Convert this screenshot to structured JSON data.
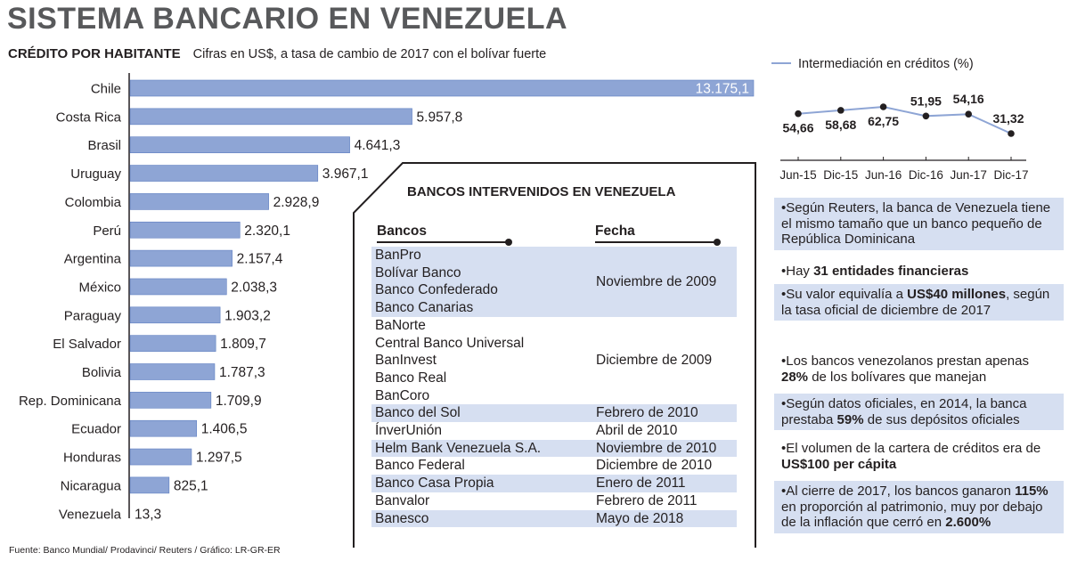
{
  "header": {
    "title": "SISTEMA BANCARIO EN VENEZUELA",
    "subtitle": "CRÉDITO POR HABITANTE",
    "note": "Cifras en US$, a tasa de cambio de 2017 con el bolívar fuerte"
  },
  "colors": {
    "bar": "#8ea5d5",
    "bar_stroke": "#5f7fc1",
    "shade": "#d6dff1",
    "line": "#8ea5d5",
    "text": "#231f20"
  },
  "chart_data": [
    {
      "type": "bar",
      "orientation": "horizontal",
      "title": "CRÉDITO POR HABITANTE",
      "categories": [
        "Chile",
        "Costa Rica",
        "Brasil",
        "Uruguay",
        "Colombia",
        "Perú",
        "Argentina",
        "México",
        "Paraguay",
        "El Salvador",
        "Bolivia",
        "Rep. Dominicana",
        "Ecuador",
        "Honduras",
        "Nicaragua",
        "Venezuela"
      ],
      "values": [
        13175.1,
        5957.8,
        4641.3,
        3967.1,
        2928.9,
        2320.1,
        2157.4,
        2038.3,
        1903.2,
        1809.7,
        1787.3,
        1709.9,
        1406.5,
        1297.5,
        825.1,
        13.3
      ],
      "value_labels": [
        "13.175,1",
        "5.957,8",
        "4.641,3",
        "3.967,1",
        "2.928,9",
        "2.320,1",
        "2.157,4",
        "2.038,3",
        "1.903,2",
        "1.809,7",
        "1.787,3",
        "1.709,9",
        "1.406,5",
        "1.297,5",
        "825,1",
        "13,3"
      ],
      "grid": false
    },
    {
      "type": "line",
      "legend": "Intermediación en créditos  (%)",
      "x": [
        "Jun-15",
        "Dic-15",
        "Jun-16",
        "Dic-16",
        "Jun-17",
        "Dic-17"
      ],
      "series": [
        {
          "name": "Intermediación en créditos  (%)",
          "values": [
            54.66,
            58.68,
            62.75,
            51.95,
            54.16,
            31.32
          ],
          "labels": [
            "54,66",
            "58,68",
            "62,75",
            "51,95",
            "54,16",
            "31,32"
          ]
        }
      ],
      "grid": false
    }
  ],
  "table": {
    "title": "BANCOS INTERVENIDOS EN VENEZUELA",
    "col_banks": "Bancos",
    "col_date": "Fecha",
    "groups": [
      {
        "banks": [
          "BanPro",
          "Bolívar Banco",
          "Banco Confederado",
          "Banco Canarias"
        ],
        "date": "Noviembre de 2009"
      },
      {
        "banks": [
          "BaNorte",
          "Central Banco Universal",
          "BanInvest",
          "Banco Real",
          "BanCoro"
        ],
        "date": "Diciembre de 2009"
      },
      {
        "banks": [
          "Banco del Sol"
        ],
        "date": "Febrero de 2010"
      },
      {
        "banks": [
          "ÍnverUnión"
        ],
        "date": "Abril de 2010"
      },
      {
        "banks": [
          "Helm Bank Venezuela S.A."
        ],
        "date": "Noviembre de 2010"
      },
      {
        "banks": [
          "Banco Federal"
        ],
        "date": "Diciembre de 2010"
      },
      {
        "banks": [
          "Banco Casa Propia"
        ],
        "date": "Enero de 2011"
      },
      {
        "banks": [
          "Banvalor"
        ],
        "date": "Febrero de 2011"
      },
      {
        "banks": [
          "Banesco"
        ],
        "date": "Mayo de 2018"
      }
    ]
  },
  "facts": [
    {
      "pre": "•Según Reuters, la banca de Venezuela tiene el mismo tamaño que un banco pequeño de República Dominicana",
      "bold": "",
      "post": ""
    },
    {
      "pre": "•Hay ",
      "bold": "31 entidades financieras",
      "post": ""
    },
    {
      "pre": "•Su valor equivalía a ",
      "bold": "US$40 millones",
      "post": ", según la tasa oficial de diciembre de 2017"
    },
    {
      "pre": "•Los bancos venezolanos prestan apenas ",
      "bold": "28%",
      "post": " de los bolívares que manejan"
    },
    {
      "pre": "•Según datos oficiales, en 2014, la banca prestaba ",
      "bold": "59%",
      "post": " de sus depósitos oficiales"
    },
    {
      "pre": "•El volumen de la cartera de créditos era de ",
      "bold": "US$100 per cápita",
      "post": ""
    },
    {
      "pre": "•Al cierre de 2017, los bancos ganaron ",
      "bold": "115%",
      "post": " en proporción al patrimonio, muy por debajo de la inflación que cerró en ",
      "bold2": "2.600%"
    }
  ],
  "footer": {
    "source": "Fuente: Banco Mundial/ Prodavinci/ Reuters / Gráfico: LR-GR-ER"
  }
}
